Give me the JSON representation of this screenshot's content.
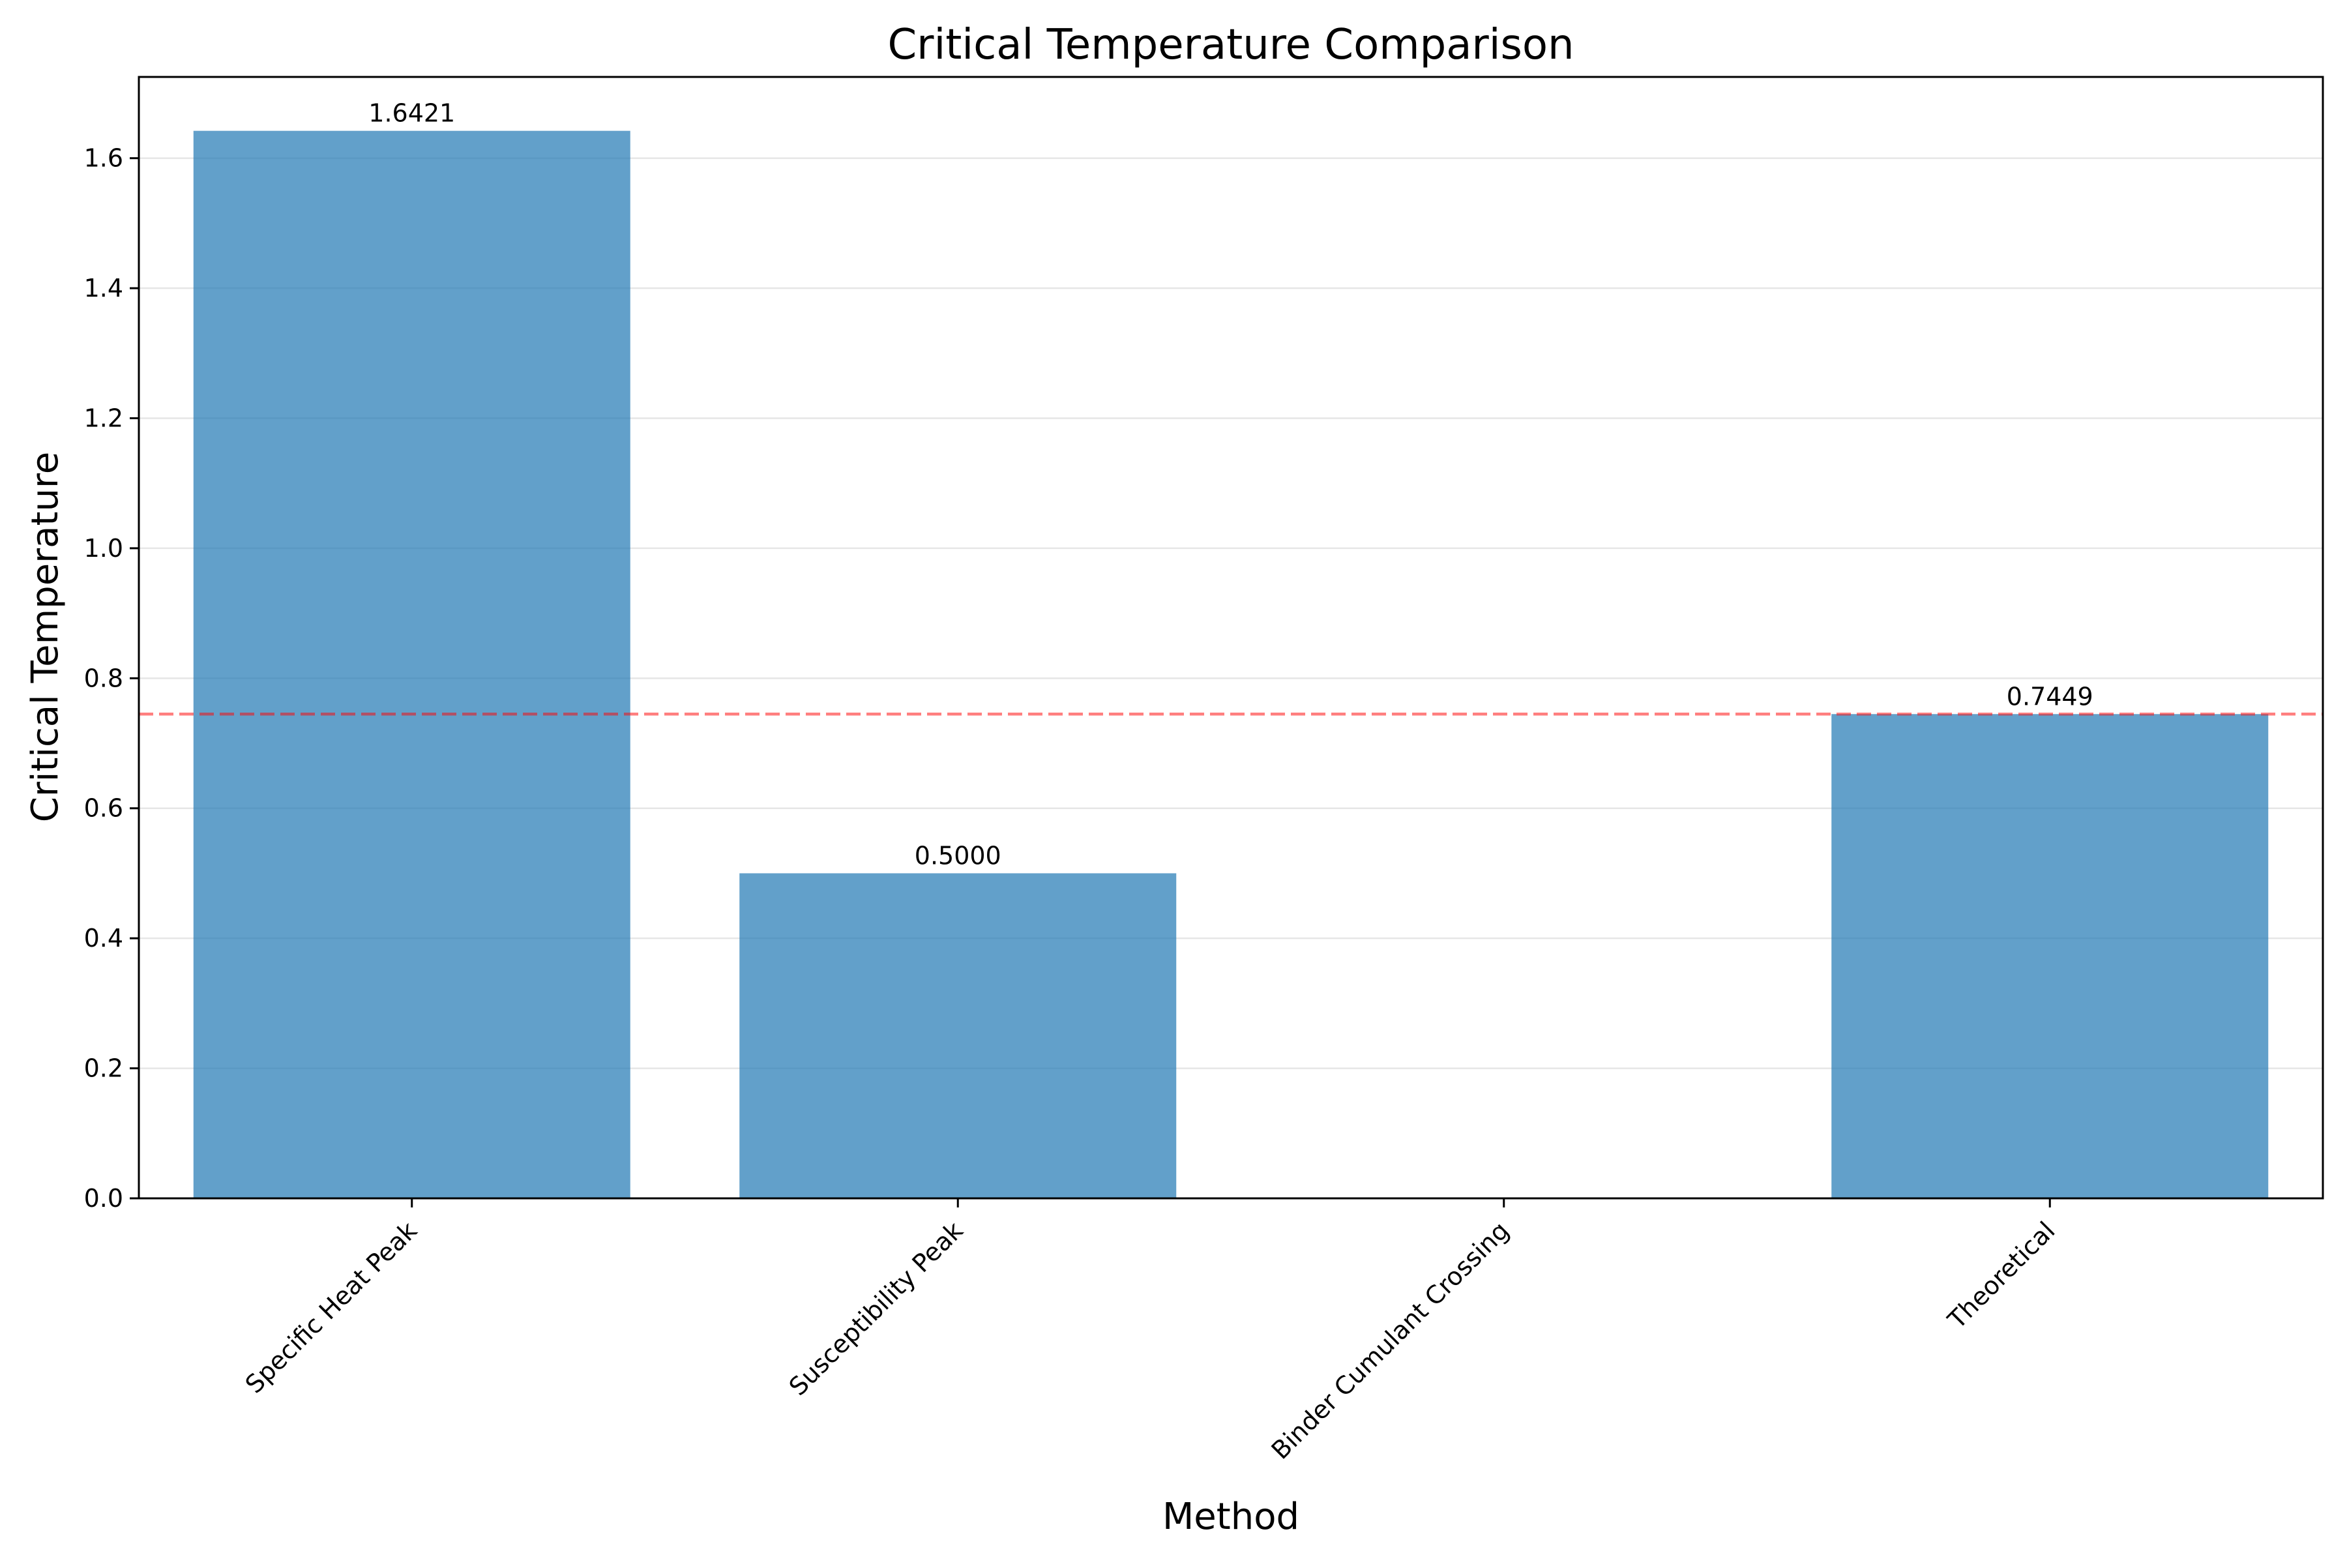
{
  "chart_data": {
    "type": "bar",
    "title": "Critical Temperature Comparison",
    "xlabel": "Method",
    "ylabel": "Critical Temperature",
    "categories": [
      "Specific Heat Peak",
      "Susceptibility Peak",
      "Binder Cumulant Crossing",
      "Theoretical"
    ],
    "values": [
      1.6421,
      0.5,
      0,
      0.7449
    ],
    "value_labels": [
      "1.6421",
      "0.5000",
      "",
      "0.7449"
    ],
    "ylim": [
      0,
      1.725
    ],
    "yticks": [
      0.0,
      0.2,
      0.4,
      0.6,
      0.8,
      1.0,
      1.2,
      1.4,
      1.6
    ],
    "ytick_labels": [
      "0.0",
      "0.2",
      "0.4",
      "0.6",
      "0.8",
      "1.0",
      "1.2",
      "1.4",
      "1.6"
    ],
    "reference_line": {
      "value": 0.7449,
      "style": "dashed",
      "color": "#ff0000"
    },
    "bar_color": "#1f77b4",
    "grid": "y",
    "xtick_rotation_deg": 45
  }
}
